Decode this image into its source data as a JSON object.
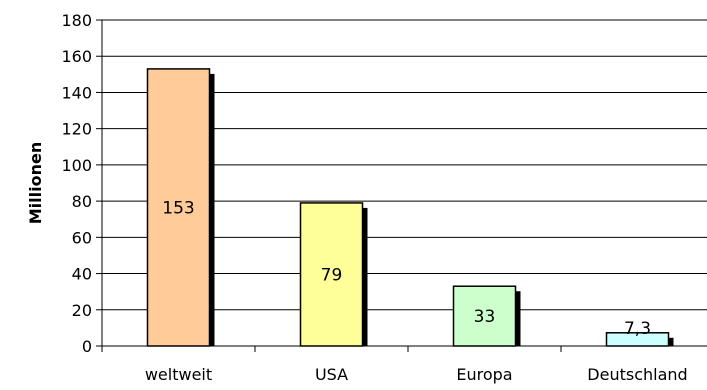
{
  "chart_data": {
    "type": "bar",
    "ylabel": "Millionen",
    "categories": [
      "weltweit",
      "USA",
      "Europa",
      "Deutschland"
    ],
    "values": [
      153,
      79,
      33,
      7.3
    ],
    "data_labels": [
      "153",
      "79",
      "33",
      "7,3"
    ],
    "bar_colors": [
      "#FFCC99",
      "#FFFF99",
      "#CCFFCC",
      "#CCFFFF"
    ],
    "ylim": [
      0,
      180
    ],
    "yticks": [
      0,
      20,
      40,
      60,
      80,
      100,
      120,
      140,
      160,
      180
    ],
    "grid": true,
    "legend": "none"
  }
}
